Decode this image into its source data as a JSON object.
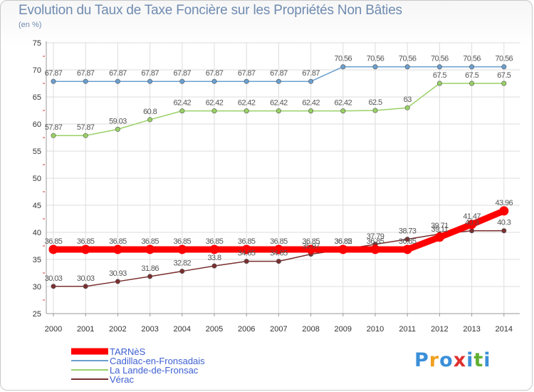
{
  "chart_data": {
    "type": "line",
    "title": "Evolution du Taux de Taxe Foncière sur les Propriétés Non Bâties",
    "unit_label": "(en %)",
    "xlabel": "",
    "ylabel": "",
    "ylim": [
      25,
      75
    ],
    "yticks": [
      "25",
      "30",
      "35",
      "40",
      "45",
      "50",
      "55",
      "60",
      "65",
      "70",
      "75"
    ],
    "categories": [
      "2000",
      "2001",
      "2002",
      "2003",
      "2004",
      "2005",
      "2006",
      "2007",
      "2008",
      "2009",
      "2010",
      "2011",
      "2012",
      "2013",
      "2014"
    ],
    "series": [
      {
        "name": "TARNèS",
        "color": "#ff0000",
        "emphasis": true,
        "values": [
          36.85,
          36.85,
          36.85,
          36.85,
          36.85,
          36.85,
          36.85,
          36.85,
          36.85,
          36.85,
          36.85,
          36.85,
          39.11,
          41.47,
          43.96
        ],
        "labels": [
          "36.85",
          "36.85",
          "36.85",
          "36.85",
          "36.85",
          "36.85",
          "36.85",
          "36.85",
          "36.85",
          "36.85",
          "36.85",
          "36.85",
          "39.11",
          "41.47",
          "43.96"
        ]
      },
      {
        "name": "Cadillac-en-Fronsadais",
        "color": "#6b9fcf",
        "values": [
          67.87,
          67.87,
          67.87,
          67.87,
          67.87,
          67.87,
          67.87,
          67.87,
          67.87,
          70.56,
          70.56,
          70.56,
          70.56,
          70.56,
          70.56
        ],
        "labels": [
          "67.87",
          "67.87",
          "67.87",
          "67.87",
          "67.87",
          "67.87",
          "67.87",
          "67.87",
          "67.87",
          "70.56",
          "70.56",
          "70.56",
          "70.56",
          "70.56",
          "70.56"
        ]
      },
      {
        "name": "La Lande-de-Fronsac",
        "color": "#99d166",
        "values": [
          57.87,
          57.87,
          59.03,
          60.8,
          62.42,
          62.42,
          62.42,
          62.42,
          62.42,
          62.42,
          62.5,
          63,
          67.5,
          67.5,
          67.5
        ],
        "labels": [
          "57.87",
          "57.87",
          "59.03",
          "60.8",
          "62.42",
          "62.42",
          "62.42",
          "62.42",
          "62.42",
          "62.42",
          "62.5",
          "63",
          "67.5",
          "67.5",
          "67.5"
        ]
      },
      {
        "name": "Vérac",
        "color": "#7a2f2f",
        "values": [
          30.03,
          30.03,
          30.93,
          31.86,
          32.82,
          33.8,
          34.65,
          34.65,
          35.97,
          36.82,
          37.79,
          38.73,
          39.71,
          40.3,
          40.3
        ],
        "labels": [
          "30.03",
          "30.03",
          "30.93",
          "31.86",
          "32.82",
          "33.8",
          "34.65",
          "34.65",
          "35.97",
          "36.82",
          "37.79",
          "38.73",
          "39.71",
          "40.3",
          "40.3"
        ]
      }
    ],
    "legend": [
      "TARNèS",
      "Cadillac-en-Fronsadais",
      "La Lande-de-Fronsac",
      "Vérac"
    ],
    "grid": true,
    "legend_position": "bottom-left"
  },
  "logo": {
    "text": "Proxiti",
    "letter_colors": [
      "#3b8fd8",
      "#f0a020",
      "#3b8fd8",
      "#e03030",
      "#3b8fd8",
      "#60b030",
      "#3b8fd8"
    ]
  }
}
